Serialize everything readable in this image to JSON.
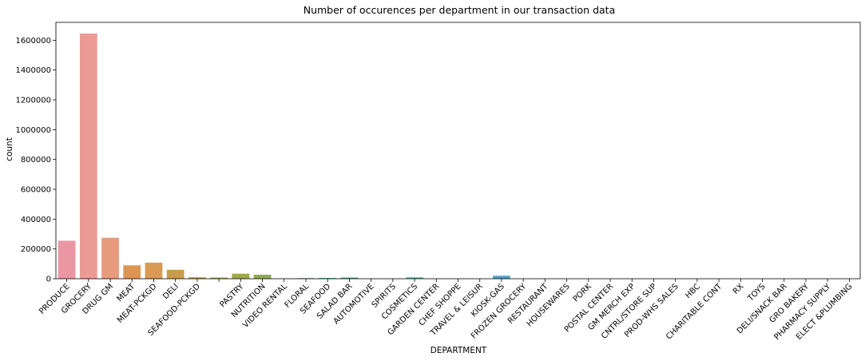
{
  "chart_data": {
    "type": "bar",
    "title": "Number of occurences per department in our transaction data",
    "xlabel": "DEPARTMENT",
    "ylabel": "count",
    "ylim": [
      0,
      1720000
    ],
    "yticks": [
      0,
      200000,
      400000,
      600000,
      800000,
      1000000,
      1200000,
      1400000,
      1600000
    ],
    "grid": false,
    "categories": [
      "PRODUCE",
      "GROCERY",
      "DRUG GM",
      "MEAT",
      "MEAT-PCKGD",
      "DELI",
      "SEAFOOD-PCKGD",
      "",
      "PASTRY",
      "NUTRITION",
      "VIDEO RENTAL",
      "FLORAL",
      "SEAFOOD",
      "SALAD BAR",
      "AUTOMOTIVE",
      "SPIRITS",
      "COSMETICS",
      "GARDEN CENTER",
      "CHEF SHOPPE",
      "TRAVEL & LEISUR",
      "KIOSK-GAS",
      "FROZEN GROCERY",
      "RESTAURANT",
      "HOUSEWARES",
      "PORK",
      "POSTAL CENTER",
      "GM MERCH EXP",
      "CNTRL/STORE SUP",
      "PROD-WHS SALES",
      "HBC",
      "CHARITABLE CONT",
      "RX",
      "TOYS",
      "DELI/SNACK BAR",
      "GRO BAKERY",
      "PHARMACY SUPPLY",
      "ELECT &PLUMBING"
    ],
    "values": [
      255000,
      1645000,
      275000,
      90000,
      108000,
      60000,
      10000,
      8000,
      34000,
      27000,
      2000,
      4000,
      5000,
      8000,
      1500,
      1500,
      9000,
      1000,
      1000,
      500,
      20000,
      300,
      300,
      200,
      200,
      200,
      100,
      100,
      100,
      100,
      50,
      50,
      50,
      50,
      50,
      50,
      50
    ],
    "colors": [
      "#ea96a3",
      "#ec9a94",
      "#e69b7d",
      "#dd9553",
      "#d89a55",
      "#c89c4d",
      "#b8a04a",
      "#a8a34a",
      "#9ea848",
      "#8faa48",
      "#6fad4c",
      "#56ad5e",
      "#4aad70",
      "#48ab83",
      "#49aa91",
      "#49a99d",
      "#4aa8a7",
      "#4aa6b0",
      "#4ca5bb",
      "#4da3c4",
      "#4ea1c8",
      "#5a9fd0",
      "#6f9cd6",
      "#8a97dc",
      "#a890de",
      "#bb8ee0",
      "#c98ce0",
      "#d48be0",
      "#dc8ad5",
      "#e08cc8",
      "#e38dbb",
      "#e68eae",
      "#e88fa3",
      "#e9909c",
      "#ea9297",
      "#ea9397",
      "#ea9595"
    ]
  }
}
